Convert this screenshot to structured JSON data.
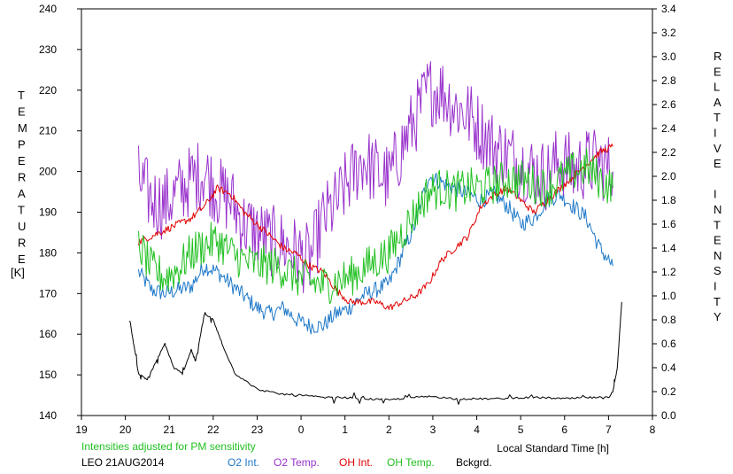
{
  "chart_data": {
    "type": "line",
    "left_axis_label": "TEMPERATURE",
    "left_axis_unit": "[K]",
    "right_axis_label": "RELATIVE INTENSITY",
    "xlabel": "Local Standard Time [h]",
    "note": "Intensities adjusted for PM sensitivity",
    "station_date": "LEO 21AUG2014",
    "x_ticks": [
      "19",
      "20",
      "21",
      "22",
      "23",
      "0",
      "1",
      "2",
      "3",
      "4",
      "5",
      "6",
      "7",
      "8"
    ],
    "y_left_ticks": [
      "140",
      "150",
      "160",
      "170",
      "180",
      "190",
      "200",
      "210",
      "220",
      "230",
      "240"
    ],
    "y_right_ticks": [
      "0.0",
      "0.2",
      "0.4",
      "0.6",
      "0.8",
      "1.0",
      "1.2",
      "1.4",
      "1.6",
      "1.8",
      "2.0",
      "2.2",
      "2.4",
      "2.6",
      "2.8",
      "3.0",
      "3.2",
      "3.4"
    ],
    "xlim": [
      19,
      32
    ],
    "ylim_left": [
      140,
      240
    ],
    "ylim_right": [
      0.0,
      3.4
    ],
    "grid": false,
    "series": [
      {
        "name": "O2 Int.",
        "axis": "right",
        "color": "#1e78c8",
        "x": [
          20.3,
          20.6,
          20.9,
          21.2,
          21.5,
          21.8,
          22.1,
          22.4,
          22.7,
          23.0,
          23.3,
          23.6,
          23.9,
          24.2,
          24.5,
          24.8,
          25.1,
          25.4,
          25.7,
          26.0,
          26.3,
          26.6,
          26.9,
          27.2,
          27.5,
          27.8,
          28.1,
          28.4,
          28.7,
          29.0,
          29.3,
          29.6,
          29.9,
          30.2,
          30.5,
          30.8,
          31.1
        ],
        "y": [
          1.2,
          1.05,
          1.02,
          1.05,
          1.08,
          1.25,
          1.2,
          1.1,
          1.0,
          0.9,
          0.85,
          0.9,
          0.8,
          0.75,
          0.75,
          0.85,
          0.9,
          1.0,
          1.05,
          1.1,
          1.35,
          1.6,
          2.0,
          1.95,
          1.9,
          1.85,
          1.8,
          1.85,
          1.75,
          1.6,
          1.65,
          1.8,
          1.85,
          1.75,
          1.65,
          1.4,
          1.25
        ]
      },
      {
        "name": "O2 Temp.",
        "axis": "left",
        "color": "#9932cc",
        "x": [
          20.3,
          20.6,
          20.9,
          21.2,
          21.5,
          21.8,
          22.1,
          22.4,
          22.7,
          23.0,
          23.3,
          23.6,
          23.9,
          24.2,
          24.5,
          24.8,
          25.1,
          25.4,
          25.7,
          26.0,
          26.3,
          26.6,
          26.9,
          27.2,
          27.5,
          27.8,
          28.1,
          28.4,
          28.7,
          29.0,
          29.3,
          29.6,
          29.9,
          30.2,
          30.5,
          30.8,
          31.1
        ],
        "y": [
          198,
          193,
          192,
          195,
          198,
          200,
          195,
          193,
          187,
          185,
          183,
          182,
          180,
          178,
          188,
          192,
          198,
          203,
          200,
          198,
          206,
          213,
          220,
          220,
          216,
          214,
          210,
          206,
          204,
          202,
          200,
          199,
          203,
          200,
          202,
          202,
          200
        ]
      },
      {
        "name": "OH Int.",
        "axis": "right",
        "color": "#e00000",
        "x": [
          20.3,
          20.6,
          20.9,
          21.2,
          21.5,
          21.8,
          22.1,
          22.4,
          22.7,
          23.0,
          23.3,
          23.6,
          23.9,
          24.2,
          24.5,
          24.8,
          25.1,
          25.4,
          25.7,
          26.0,
          26.3,
          26.6,
          26.9,
          27.2,
          27.5,
          27.8,
          28.1,
          28.4,
          28.7,
          29.0,
          29.3,
          29.6,
          29.9,
          30.2,
          30.5,
          30.8,
          31.1
        ],
        "y": [
          1.45,
          1.5,
          1.55,
          1.6,
          1.65,
          1.75,
          1.9,
          1.85,
          1.7,
          1.6,
          1.5,
          1.4,
          1.35,
          1.25,
          1.2,
          1.05,
          0.95,
          0.95,
          0.95,
          0.9,
          0.95,
          1.0,
          1.1,
          1.3,
          1.4,
          1.5,
          1.75,
          1.85,
          1.9,
          1.8,
          1.7,
          1.8,
          1.9,
          2.0,
          2.1,
          2.2,
          2.25
        ]
      },
      {
        "name": "OH Temp.",
        "axis": "left",
        "color": "#22c022",
        "x": [
          20.3,
          20.6,
          20.9,
          21.2,
          21.5,
          21.8,
          22.1,
          22.4,
          22.7,
          23.0,
          23.3,
          23.6,
          23.9,
          24.2,
          24.5,
          24.8,
          25.1,
          25.4,
          25.7,
          26.0,
          26.3,
          26.6,
          26.9,
          27.2,
          27.5,
          27.8,
          28.1,
          28.4,
          28.7,
          29.0,
          29.3,
          29.6,
          29.9,
          30.2,
          30.5,
          30.8,
          31.1
        ],
        "y": [
          182,
          176,
          174,
          176,
          180,
          182,
          183,
          180,
          178,
          177,
          177,
          176,
          174,
          173,
          172,
          173,
          174,
          176,
          178,
          180,
          185,
          190,
          195,
          196,
          195,
          196,
          196,
          197,
          198,
          198,
          197,
          196,
          198,
          200,
          201,
          198,
          196
        ]
      },
      {
        "name": "Bckgrd.",
        "axis": "right",
        "color": "#000000",
        "x": [
          20.1,
          20.3,
          20.5,
          20.7,
          20.9,
          21.1,
          21.3,
          21.5,
          21.6,
          21.8,
          22.0,
          22.2,
          22.5,
          23.0,
          23.5,
          24.0,
          24.5,
          25.0,
          25.5,
          26.0,
          26.5,
          27.0,
          27.5,
          28.0,
          28.5,
          29.0,
          29.5,
          30.0,
          30.5,
          31.0,
          31.1,
          31.2,
          31.3
        ],
        "y": [
          0.8,
          0.35,
          0.3,
          0.45,
          0.6,
          0.4,
          0.35,
          0.55,
          0.45,
          0.85,
          0.8,
          0.6,
          0.35,
          0.22,
          0.18,
          0.17,
          0.15,
          0.15,
          0.14,
          0.13,
          0.15,
          0.16,
          0.14,
          0.14,
          0.14,
          0.15,
          0.15,
          0.14,
          0.15,
          0.15,
          0.2,
          0.4,
          0.95
        ]
      }
    ]
  }
}
